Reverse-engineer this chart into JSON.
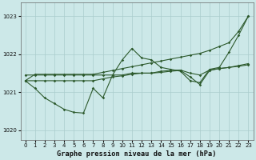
{
  "title": "Graphe pression niveau de la mer (hPa)",
  "bg_color": "#cce8e8",
  "grid_color": "#aacccc",
  "line_color": "#2d5a2d",
  "xlim": [
    -0.5,
    23.5
  ],
  "ylim": [
    1019.75,
    1023.35
  ],
  "yticks": [
    1020,
    1021,
    1022,
    1023
  ],
  "xticks": [
    0,
    1,
    2,
    3,
    4,
    5,
    6,
    7,
    8,
    9,
    10,
    11,
    12,
    13,
    14,
    15,
    16,
    17,
    18,
    19,
    20,
    21,
    22,
    23
  ],
  "line_straight": [
    1021.3,
    1021.47,
    1021.47,
    1021.47,
    1021.47,
    1021.47,
    1021.47,
    1021.47,
    1021.52,
    1021.57,
    1021.62,
    1021.67,
    1021.72,
    1021.77,
    1021.82,
    1021.87,
    1021.92,
    1021.97,
    1022.02,
    1022.1,
    1022.2,
    1022.3,
    1022.6,
    1023.0
  ],
  "line_wavy": [
    1021.3,
    1021.1,
    1020.85,
    1020.7,
    1020.55,
    1020.47,
    1020.45,
    1021.1,
    1020.85,
    1021.45,
    1021.85,
    1022.15,
    1021.9,
    1021.85,
    1021.65,
    1021.6,
    1021.55,
    1021.3,
    1021.25,
    1021.6,
    1021.65,
    1022.05,
    1022.5,
    1023.0
  ],
  "line_flat1": [
    1021.45,
    1021.45,
    1021.45,
    1021.45,
    1021.45,
    1021.45,
    1021.45,
    1021.45,
    1021.45,
    1021.45,
    1021.45,
    1021.5,
    1021.5,
    1021.5,
    1021.55,
    1021.57,
    1021.58,
    1021.5,
    1021.45,
    1021.58,
    1021.62,
    1021.65,
    1021.68,
    1021.72
  ],
  "line_flat2": [
    1021.3,
    1021.3,
    1021.3,
    1021.3,
    1021.3,
    1021.3,
    1021.3,
    1021.3,
    1021.35,
    1021.4,
    1021.43,
    1021.47,
    1021.5,
    1021.5,
    1021.52,
    1021.55,
    1021.57,
    1021.4,
    1021.2,
    1021.57,
    1021.62,
    1021.65,
    1021.7,
    1021.75
  ]
}
